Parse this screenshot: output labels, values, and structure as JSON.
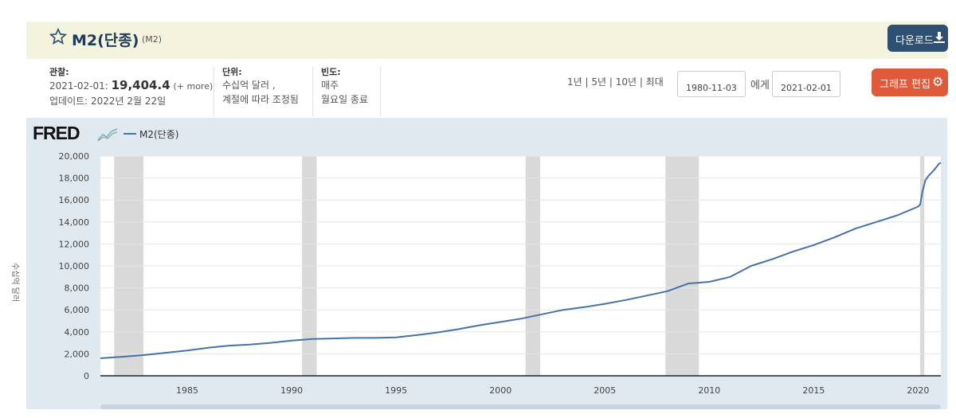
{
  "header": {
    "title": "M2(단종)",
    "series_id": "(M2)",
    "download_label": "다운로드"
  },
  "meta": {
    "observation_label": "관찰:",
    "observation_date": "2021-02-01:",
    "observation_value": "19,404.4",
    "more": "(+ more)",
    "updated": "업데이트: 2022년 2월 22일",
    "units_label": "단위:",
    "units_line1": "수십억 달러 ,",
    "units_line2": "계절에 따라 조정됨",
    "frequency_label": "빈도:",
    "frequency_line1": "매주",
    "frequency_line2": "월요일 종료"
  },
  "controls": {
    "range_links": "1년 | 5년 | 10년 | 최대",
    "start_date": "1980-11-03",
    "to_label": "에게",
    "end_date": "2021-02-01",
    "edit_label": "그래프 편집"
  },
  "chart_panel": {
    "logo": "FRED",
    "legend": "M2(단종)",
    "ylabel": "수십억 달러"
  },
  "colors": {
    "series": "#4572a7",
    "recession": "#d9d9d9",
    "panel_bg": "#e1e9f0",
    "title_bar": "#f4f3de",
    "download_button": "#2f4f73",
    "edit_button": "#de5a3a"
  },
  "chart_data": {
    "type": "line",
    "title": "",
    "xlabel": "",
    "ylabel": "수십억 달러",
    "xlim": [
      1980.84,
      2021.09
    ],
    "ylim": [
      0,
      20000
    ],
    "grid": true,
    "x_ticks": [
      1985,
      1990,
      1995,
      2000,
      2005,
      2010,
      2015,
      2020
    ],
    "y_ticks": [
      0,
      2000,
      4000,
      6000,
      8000,
      10000,
      12000,
      14000,
      16000,
      18000,
      20000
    ],
    "y_tick_labels": [
      "0",
      "2,000",
      "4,000",
      "6,000",
      "8,000",
      "10,000",
      "12,000",
      "14,000",
      "16,000",
      "18,000",
      "20,000"
    ],
    "recessions": [
      [
        1981.5,
        1982.9
      ],
      [
        1990.5,
        1991.2
      ],
      [
        2001.2,
        2001.9
      ],
      [
        2007.9,
        2009.5
      ],
      [
        2020.1,
        2020.3
      ]
    ],
    "series": [
      {
        "name": "M2(단종)",
        "x": [
          1980.84,
          1982.0,
          1983.0,
          1984.0,
          1985.0,
          1986.0,
          1987.0,
          1988.0,
          1989.0,
          1990.0,
          1991.0,
          1992.0,
          1993.0,
          1994.0,
          1995.0,
          1996.0,
          1997.0,
          1998.0,
          1999.0,
          2000.0,
          2001.0,
          2002.0,
          2003.0,
          2004.0,
          2005.0,
          2006.0,
          2007.0,
          2008.0,
          2009.0,
          2010.0,
          2011.0,
          2012.0,
          2013.0,
          2014.0,
          2015.0,
          2016.0,
          2017.0,
          2018.0,
          2019.0,
          2020.0,
          2020.1,
          2020.2,
          2020.35,
          2020.5,
          2020.75,
          2021.0,
          2021.09
        ],
        "y": [
          1600,
          1750,
          1900,
          2100,
          2300,
          2550,
          2750,
          2850,
          3000,
          3200,
          3350,
          3400,
          3450,
          3450,
          3500,
          3700,
          3950,
          4250,
          4600,
          4900,
          5200,
          5600,
          6000,
          6250,
          6550,
          6900,
          7300,
          7700,
          8400,
          8550,
          9000,
          10000,
          10600,
          11300,
          11900,
          12600,
          13400,
          14000,
          14600,
          15400,
          15600,
          16700,
          17800,
          18200,
          18700,
          19300,
          19404
        ]
      }
    ]
  }
}
